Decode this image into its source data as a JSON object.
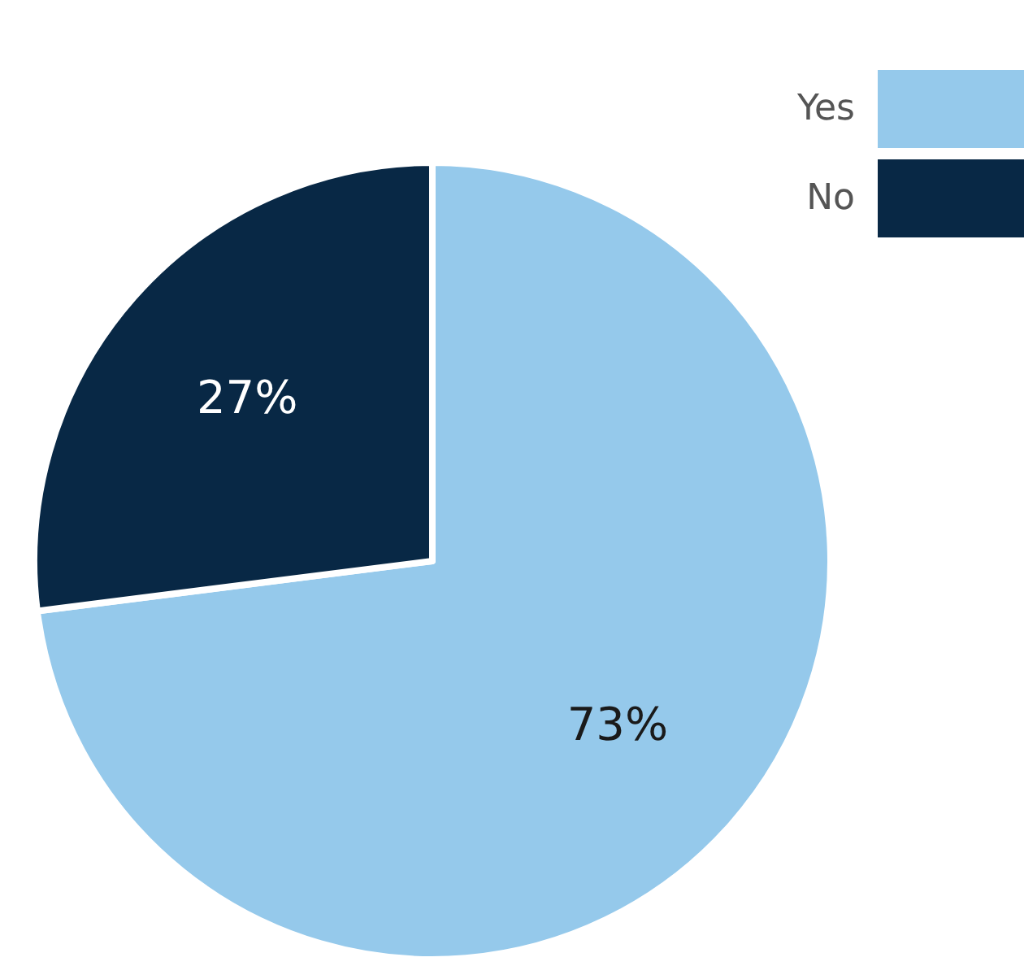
{
  "chart_data": {
    "type": "pie",
    "categories": [
      "Yes",
      "No"
    ],
    "values": [
      73,
      27
    ],
    "colors": [
      "#95c9eb",
      "#082845"
    ],
    "value_labels": [
      "73%",
      "27%"
    ],
    "legend": "top right"
  }
}
